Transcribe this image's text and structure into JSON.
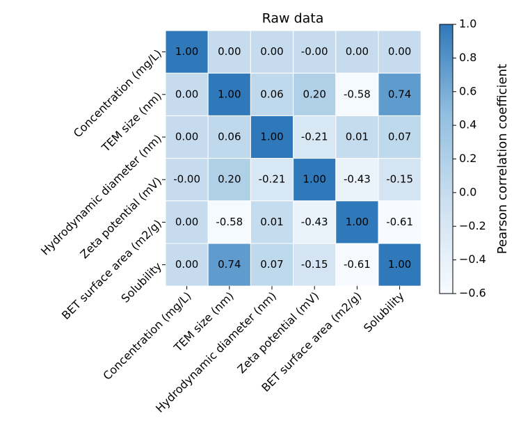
{
  "chart_data": {
    "type": "heatmap",
    "title": "Raw data",
    "categories": [
      "Concentration (mg/L)",
      "TEM size (nm)",
      "Hydrodynamic diameter (nm)",
      "Zeta potential (mV)",
      "BET surface area (m2/g)",
      "Solubility"
    ],
    "values": [
      [
        1.0,
        0.0,
        0.0,
        0,
        0.0,
        0.0
      ],
      [
        0.0,
        1.0,
        0.06,
        0.2,
        -0.58,
        0.74
      ],
      [
        0.0,
        0.06,
        1.0,
        -0.21,
        0.01,
        0.07
      ],
      [
        0,
        0.2,
        -0.21,
        1.0,
        -0.43,
        -0.15
      ],
      [
        0.0,
        -0.58,
        0.01,
        -0.43,
        1.0,
        -0.61
      ],
      [
        0.0,
        0.74,
        0.07,
        -0.15,
        -0.61,
        1.0
      ]
    ],
    "value_labels": [
      [
        "1.00",
        "0.00",
        "0.00",
        "-0.00",
        "0.00",
        "0.00"
      ],
      [
        "0.00",
        "1.00",
        "0.06",
        "0.20",
        "-0.58",
        "0.74"
      ],
      [
        "0.00",
        "0.06",
        "1.00",
        "-0.21",
        "0.01",
        "0.07"
      ],
      [
        "-0.00",
        "0.20",
        "-0.21",
        "1.00",
        "-0.43",
        "-0.15"
      ],
      [
        "0.00",
        "-0.58",
        "0.01",
        "-0.43",
        "1.00",
        "-0.61"
      ],
      [
        "0.00",
        "0.74",
        "0.07",
        "-0.15",
        "-0.61",
        "1.00"
      ]
    ],
    "colorbar_label": "Pearson correlation coefficient",
    "zlim": [
      -0.6,
      1.0
    ],
    "zticks": [
      {
        "value": -0.6,
        "label": "−0.6"
      },
      {
        "value": -0.4,
        "label": "−0.4"
      },
      {
        "value": -0.2,
        "label": "−0.2"
      },
      {
        "value": 0,
        "label": "0.0"
      },
      0.2,
      0.4,
      0.6,
      0.8,
      {
        "value": 1.0,
        "label": "1.0"
      }
    ],
    "colormap": [
      "#f7fbff",
      "#cde0f0",
      "#92bfe0",
      "#2f78b9"
    ]
  }
}
